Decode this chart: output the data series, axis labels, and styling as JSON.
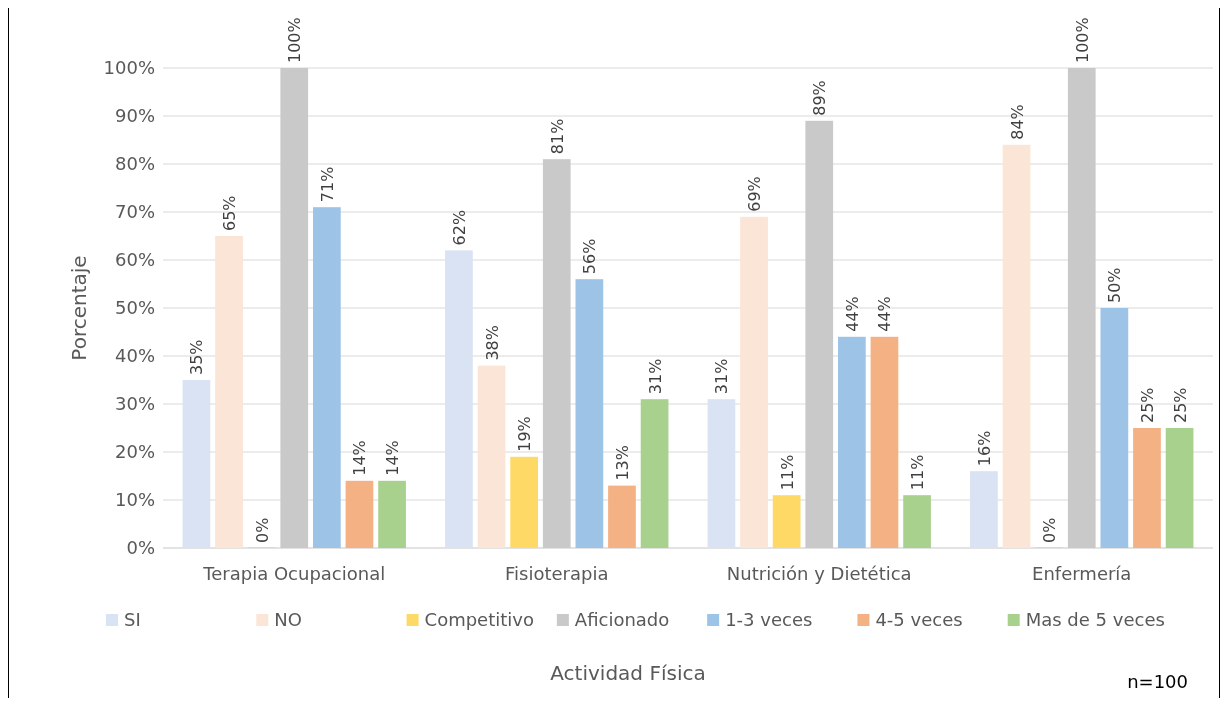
{
  "chart_data": {
    "type": "bar",
    "xlabel": "Actividad Física",
    "ylabel": "Porcentaje",
    "categories": [
      "Terapia Ocupacional",
      "Fisioterapia",
      "Nutrición y Dietética",
      "Enfermería"
    ],
    "series": [
      {
        "name": "SI",
        "color": "#dae3f3",
        "values": [
          35,
          62,
          31,
          16
        ],
        "value_labels": [
          "35%",
          "62%",
          "31%",
          "16%"
        ]
      },
      {
        "name": "NO",
        "color": "#fbe5d6",
        "values": [
          65,
          38,
          69,
          84
        ],
        "value_labels": [
          "65%",
          "38%",
          "69%",
          "84%"
        ]
      },
      {
        "name": "Competitivo",
        "color": "#ffd966",
        "values": [
          0,
          19,
          11,
          0
        ],
        "value_labels": [
          "0%",
          "19%",
          "11%",
          "0%"
        ]
      },
      {
        "name": "Aficionado",
        "color": "#c9c9c9",
        "values": [
          100,
          81,
          89,
          100
        ],
        "value_labels": [
          "100%",
          "81%",
          "89%",
          "100%"
        ]
      },
      {
        "name": "1-3 veces",
        "color": "#9dc3e6",
        "values": [
          71,
          56,
          44,
          50
        ],
        "value_labels": [
          "71%",
          "56%",
          "44%",
          "50%"
        ]
      },
      {
        "name": "4-5 veces",
        "color": "#f4b183",
        "values": [
          14,
          13,
          44,
          25
        ],
        "value_labels": [
          "14%",
          "13%",
          "44%",
          "25%"
        ]
      },
      {
        "name": "Mas de 5 veces",
        "color": "#a9d18e",
        "values": [
          14,
          31,
          11,
          25
        ],
        "value_labels": [
          "14%",
          "31%",
          "11%",
          "25%"
        ]
      }
    ],
    "ylim": [
      0,
      100
    ],
    "yticks": [
      {
        "value": 0,
        "label": "0%"
      },
      {
        "value": 10,
        "label": "10%"
      },
      {
        "value": 20,
        "label": "20%"
      },
      {
        "value": 30,
        "label": "30%"
      },
      {
        "value": 40,
        "label": "40%"
      },
      {
        "value": 50,
        "label": "50%"
      },
      {
        "value": 60,
        "label": "60%"
      },
      {
        "value": 70,
        "label": "70%"
      },
      {
        "value": 80,
        "label": "80%"
      },
      {
        "value": 90,
        "label": "90%"
      },
      {
        "value": 100,
        "label": "100%"
      }
    ],
    "grid": "y",
    "legend": "bottom",
    "annotations": [
      "n=100"
    ]
  }
}
